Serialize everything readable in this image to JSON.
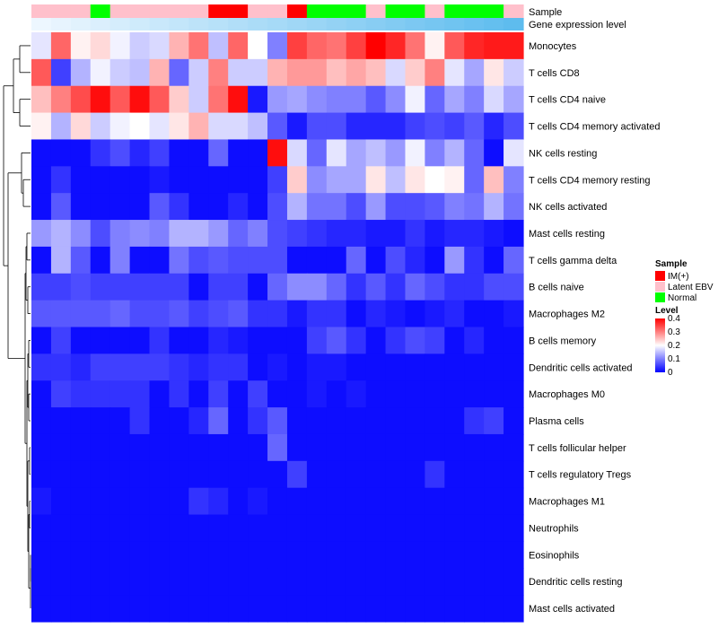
{
  "chart_data": {
    "type": "heatmap",
    "title": "",
    "color_scale": {
      "low": "#0000ff",
      "mid": "#ffffff",
      "high": "#ff0000",
      "min": 0,
      "mid_value": 0.2,
      "max": 0.4
    },
    "column_annotations": [
      {
        "name": "Sample",
        "values": [
          "Latent EBV",
          "Latent EBV",
          "Latent EBV",
          "Normal",
          "Latent EBV",
          "Latent EBV",
          "Latent EBV",
          "Latent EBV",
          "Latent EBV",
          "IM(+)",
          "IM(+)",
          "Latent EBV",
          "Latent EBV",
          "IM(+)",
          "Normal",
          "Normal",
          "Normal",
          "Latent EBV",
          "Normal",
          "Normal",
          "Latent EBV",
          "Normal",
          "Normal",
          "Normal",
          "Latent EBV"
        ]
      },
      {
        "name": "Gene expression level",
        "values": [
          0.02,
          0.06,
          0.1,
          0.14,
          0.18,
          0.22,
          0.26,
          0.3,
          0.34,
          0.38,
          0.42,
          0.46,
          0.5,
          0.54,
          0.58,
          0.62,
          0.66,
          0.7,
          0.74,
          0.78,
          0.82,
          0.86,
          0.9,
          0.94,
          0.98
        ]
      }
    ],
    "sample_colors": {
      "IM(+)": "#ff0000",
      "Latent EBV": "#ffc0cb",
      "Normal": "#00ff00"
    },
    "expr_colors": {
      "low": "#f0f8ff",
      "high": "#5bbbee"
    },
    "rows": [
      {
        "name": "Monocytes",
        "values": [
          0.18,
          0.32,
          0.21,
          0.23,
          0.19,
          0.16,
          0.17,
          0.26,
          0.31,
          0.15,
          0.32,
          0.2,
          0.1,
          0.35,
          0.32,
          0.31,
          0.35,
          0.4,
          0.37,
          0.31,
          0.21,
          0.33,
          0.37,
          0.38,
          0.38
        ]
      },
      {
        "name": "T cells CD8",
        "values": [
          0.33,
          0.05,
          0.14,
          0.19,
          0.16,
          0.15,
          0.26,
          0.08,
          0.16,
          0.3,
          0.16,
          0.16,
          0.26,
          0.28,
          0.28,
          0.25,
          0.27,
          0.25,
          0.17,
          0.24,
          0.3,
          0.18,
          0.13,
          0.22,
          0.16
        ]
      },
      {
        "name": "T cells CD4 naive",
        "values": [
          0.25,
          0.3,
          0.34,
          0.39,
          0.33,
          0.39,
          0.33,
          0.24,
          0.16,
          0.31,
          0.39,
          0.02,
          0.12,
          0.13,
          0.11,
          0.1,
          0.1,
          0.07,
          0.11,
          0.19,
          0.08,
          0.13,
          0.1,
          0.17,
          0.13
        ]
      },
      {
        "name": "T cells CD4 memory activated",
        "values": [
          0.21,
          0.14,
          0.23,
          0.16,
          0.19,
          0.2,
          0.18,
          0.22,
          0.26,
          0.17,
          0.17,
          0.15,
          0.07,
          0.02,
          0.06,
          0.06,
          0.03,
          0.03,
          0.03,
          0.05,
          0.06,
          0.05,
          0.07,
          0.03,
          0.06
        ]
      },
      {
        "name": "NK cells resting",
        "values": [
          0.01,
          0.01,
          0.01,
          0.04,
          0.06,
          0.03,
          0.05,
          0.01,
          0.01,
          0.08,
          0.01,
          0.01,
          0.39,
          0.17,
          0.08,
          0.18,
          0.13,
          0.15,
          0.12,
          0.19,
          0.1,
          0.14,
          0.08,
          0.01,
          0.18
        ]
      },
      {
        "name": "T cells CD4 memory resting",
        "values": [
          0.01,
          0.04,
          0.01,
          0.01,
          0.01,
          0.01,
          0.02,
          0.01,
          0.01,
          0.01,
          0.01,
          0.01,
          0.05,
          0.24,
          0.11,
          0.13,
          0.13,
          0.22,
          0.15,
          0.22,
          0.2,
          0.21,
          0.08,
          0.25,
          0.1
        ]
      },
      {
        "name": "NK cells activated",
        "values": [
          0.01,
          0.07,
          0.01,
          0.01,
          0.01,
          0.01,
          0.07,
          0.04,
          0.01,
          0.01,
          0.03,
          0.01,
          0.06,
          0.14,
          0.09,
          0.09,
          0.06,
          0.12,
          0.06,
          0.06,
          0.07,
          0.1,
          0.09,
          0.14,
          0.09
        ]
      },
      {
        "name": "Mast cells resting",
        "values": [
          0.12,
          0.14,
          0.11,
          0.06,
          0.1,
          0.11,
          0.1,
          0.14,
          0.14,
          0.12,
          0.08,
          0.1,
          0.06,
          0.05,
          0.04,
          0.03,
          0.03,
          0.02,
          0.02,
          0.04,
          0.02,
          0.03,
          0.03,
          0.02,
          0.01
        ]
      },
      {
        "name": "T cells gamma delta",
        "values": [
          0.01,
          0.14,
          0.07,
          0.01,
          0.1,
          0.01,
          0.01,
          0.09,
          0.06,
          0.07,
          0.06,
          0.06,
          0.06,
          0.01,
          0.01,
          0.01,
          0.08,
          0.01,
          0.06,
          0.03,
          0.01,
          0.12,
          0.04,
          0.01,
          0.08
        ]
      },
      {
        "name": "B cells naive",
        "values": [
          0.05,
          0.05,
          0.06,
          0.05,
          0.05,
          0.05,
          0.05,
          0.05,
          0.01,
          0.05,
          0.05,
          0.01,
          0.08,
          0.11,
          0.11,
          0.08,
          0.04,
          0.07,
          0.04,
          0.08,
          0.06,
          0.04,
          0.04,
          0.06,
          0.06
        ]
      },
      {
        "name": "Macrophages M2",
        "values": [
          0.07,
          0.07,
          0.07,
          0.07,
          0.08,
          0.06,
          0.06,
          0.07,
          0.05,
          0.06,
          0.07,
          0.04,
          0.04,
          0.02,
          0.04,
          0.04,
          0.01,
          0.03,
          0.02,
          0.01,
          0.02,
          0.03,
          0.01,
          0.01,
          0.02
        ]
      },
      {
        "name": "B cells memory",
        "values": [
          0.01,
          0.05,
          0.01,
          0.01,
          0.01,
          0.01,
          0.04,
          0.01,
          0.01,
          0.03,
          0.02,
          0.01,
          0.01,
          0.01,
          0.05,
          0.07,
          0.04,
          0.01,
          0.04,
          0.06,
          0.05,
          0.01,
          0.03,
          0.01,
          0.01
        ]
      },
      {
        "name": "Dendritic cells activated",
        "values": [
          0.04,
          0.04,
          0.03,
          0.05,
          0.05,
          0.05,
          0.05,
          0.04,
          0.03,
          0.04,
          0.04,
          0.01,
          0.02,
          0.01,
          0.02,
          0.02,
          0.01,
          0.01,
          0.01,
          0.01,
          0.01,
          0.01,
          0.01,
          0.01,
          0.01
        ]
      },
      {
        "name": "Macrophages M0",
        "values": [
          0.01,
          0.05,
          0.04,
          0.04,
          0.04,
          0.04,
          0.01,
          0.04,
          0.01,
          0.05,
          0.01,
          0.05,
          0.01,
          0.01,
          0.02,
          0.01,
          0.02,
          0.01,
          0.01,
          0.01,
          0.01,
          0.01,
          0.01,
          0.01,
          0.01
        ]
      },
      {
        "name": "Plasma cells",
        "values": [
          0.01,
          0.01,
          0.01,
          0.01,
          0.01,
          0.04,
          0.01,
          0.01,
          0.03,
          0.08,
          0.01,
          0.04,
          0.07,
          0.01,
          0.01,
          0.01,
          0.01,
          0.01,
          0.01,
          0.01,
          0.01,
          0.01,
          0.04,
          0.05,
          0.01
        ]
      },
      {
        "name": "T cells follicular helper",
        "values": [
          0.01,
          0.01,
          0.01,
          0.01,
          0.01,
          0.01,
          0.01,
          0.01,
          0.01,
          0.01,
          0.01,
          0.01,
          0.08,
          0.01,
          0.01,
          0.01,
          0.01,
          0.01,
          0.01,
          0.01,
          0.01,
          0.01,
          0.01,
          0.01,
          0.01
        ]
      },
      {
        "name": "T cells regulatory  Tregs",
        "values": [
          0.01,
          0.01,
          0.01,
          0.01,
          0.01,
          0.01,
          0.01,
          0.01,
          0.01,
          0.01,
          0.01,
          0.01,
          0.01,
          0.05,
          0.01,
          0.01,
          0.01,
          0.01,
          0.01,
          0.01,
          0.04,
          0.01,
          0.01,
          0.01,
          0.01
        ]
      },
      {
        "name": "Macrophages M1",
        "values": [
          0.02,
          0.01,
          0.01,
          0.01,
          0.01,
          0.01,
          0.01,
          0.01,
          0.04,
          0.03,
          0.01,
          0.02,
          0.01,
          0.01,
          0.01,
          0.01,
          0.01,
          0.01,
          0.01,
          0.01,
          0.01,
          0.01,
          0.01,
          0.01,
          0.01
        ]
      },
      {
        "name": "Neutrophils",
        "values": [
          0.01,
          0.01,
          0.01,
          0.01,
          0.01,
          0.01,
          0.01,
          0.01,
          0.01,
          0.01,
          0.01,
          0.01,
          0.01,
          0.01,
          0.01,
          0.01,
          0.01,
          0.01,
          0.01,
          0.01,
          0.01,
          0.01,
          0.01,
          0.01,
          0.01
        ]
      },
      {
        "name": "Eosinophils",
        "values": [
          0.01,
          0.01,
          0.01,
          0.01,
          0.01,
          0.01,
          0.01,
          0.01,
          0.01,
          0.01,
          0.01,
          0.01,
          0.01,
          0.01,
          0.01,
          0.01,
          0.01,
          0.01,
          0.01,
          0.01,
          0.01,
          0.01,
          0.01,
          0.01,
          0.01
        ]
      },
      {
        "name": "Dendritic cells resting",
        "values": [
          0.01,
          0.01,
          0.01,
          0.01,
          0.01,
          0.01,
          0.01,
          0.01,
          0.01,
          0.01,
          0.01,
          0.01,
          0.01,
          0.01,
          0.01,
          0.01,
          0.01,
          0.01,
          0.01,
          0.01,
          0.01,
          0.01,
          0.01,
          0.01,
          0.01
        ]
      },
      {
        "name": "Mast cells activated",
        "values": [
          0.01,
          0.01,
          0.01,
          0.01,
          0.01,
          0.01,
          0.01,
          0.01,
          0.01,
          0.01,
          0.01,
          0.01,
          0.01,
          0.01,
          0.01,
          0.01,
          0.01,
          0.01,
          0.01,
          0.01,
          0.01,
          0.01,
          0.01,
          0.01,
          0.01
        ]
      }
    ],
    "legend": {
      "placement": "right",
      "sample_title": "Sample",
      "sample_items": [
        "IM(+)",
        "Latent EBV",
        "Normal"
      ],
      "level_title": "Level",
      "level_ticks": [
        "0.4",
        "0.3",
        "0.2",
        "0.1",
        "0"
      ]
    },
    "row_dendrogram": true
  }
}
